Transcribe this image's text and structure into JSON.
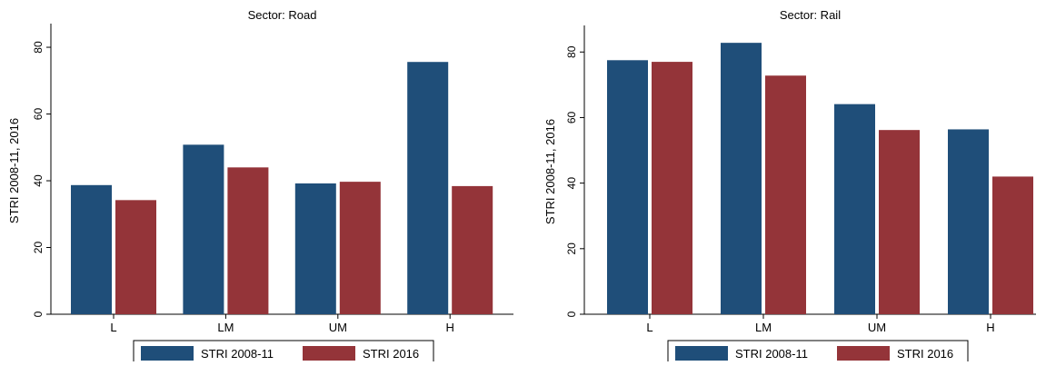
{
  "chart_data": [
    {
      "type": "bar",
      "title": "Sector: Road",
      "ylabel": "STRI 2008-11, 2016",
      "categories": [
        "L",
        "LM",
        "UM",
        "H"
      ],
      "series": [
        {
          "name": "STRI 2008-11",
          "color": "#1f4e79",
          "values": [
            38.7,
            50.8,
            39.2,
            75.6
          ]
        },
        {
          "name": "STRI 2016",
          "color": "#943439",
          "values": [
            34.2,
            44.0,
            39.7,
            38.4
          ]
        }
      ],
      "ylim": [
        0,
        86
      ],
      "yticks": [
        0,
        20,
        40,
        60,
        80
      ],
      "grid": false,
      "legend": "bottom"
    },
    {
      "type": "bar",
      "title": "Sector: Rail",
      "ylabel": "STRI 2008-11, 2016",
      "categories": [
        "L",
        "LM",
        "UM",
        "H"
      ],
      "series": [
        {
          "name": "STRI 2008-11",
          "color": "#1f4e79",
          "values": [
            77.5,
            82.8,
            64.1,
            56.4
          ]
        },
        {
          "name": "STRI 2016",
          "color": "#943439",
          "values": [
            77.0,
            72.8,
            56.2,
            42.0
          ]
        }
      ],
      "ylim": [
        0,
        87
      ],
      "yticks": [
        0,
        20,
        40,
        60,
        80
      ],
      "grid": false,
      "legend": "bottom"
    }
  ]
}
